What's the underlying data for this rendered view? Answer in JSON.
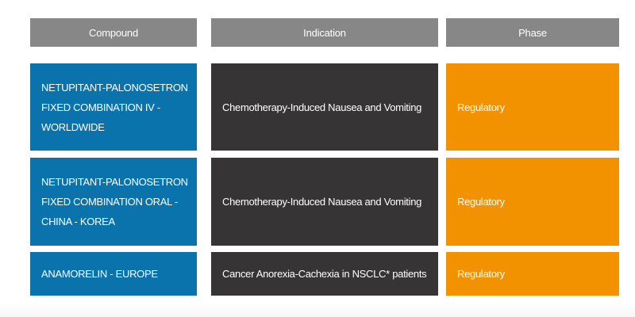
{
  "header": {
    "compound": "Compound",
    "indication": "Indication",
    "phase": "Phase"
  },
  "colors": {
    "header_bg": "#878787",
    "compound_bg": "#0a73ab",
    "indication_bg": "#363435",
    "phase_bg": "#f39200"
  },
  "rows": [
    {
      "compound": "NETUPITANT-PALONOSETRON\nFIXED COMBINATION IV -\nWORLDWIDE",
      "indication": "Chemotherapy-Induced Nausea and Vomiting",
      "phase": "Regulatory"
    },
    {
      "compound": "NETUPITANT-PALONOSETRON\nFIXED COMBINATION ORAL -\nCHINA - KOREA",
      "indication": "Chemotherapy-Induced Nausea and Vomiting",
      "phase": "Regulatory"
    },
    {
      "compound": "ANAMORELIN - EUROPE",
      "indication": "Cancer Anorexia-Cachexia in NSCLC* patients",
      "phase": "Regulatory"
    }
  ]
}
